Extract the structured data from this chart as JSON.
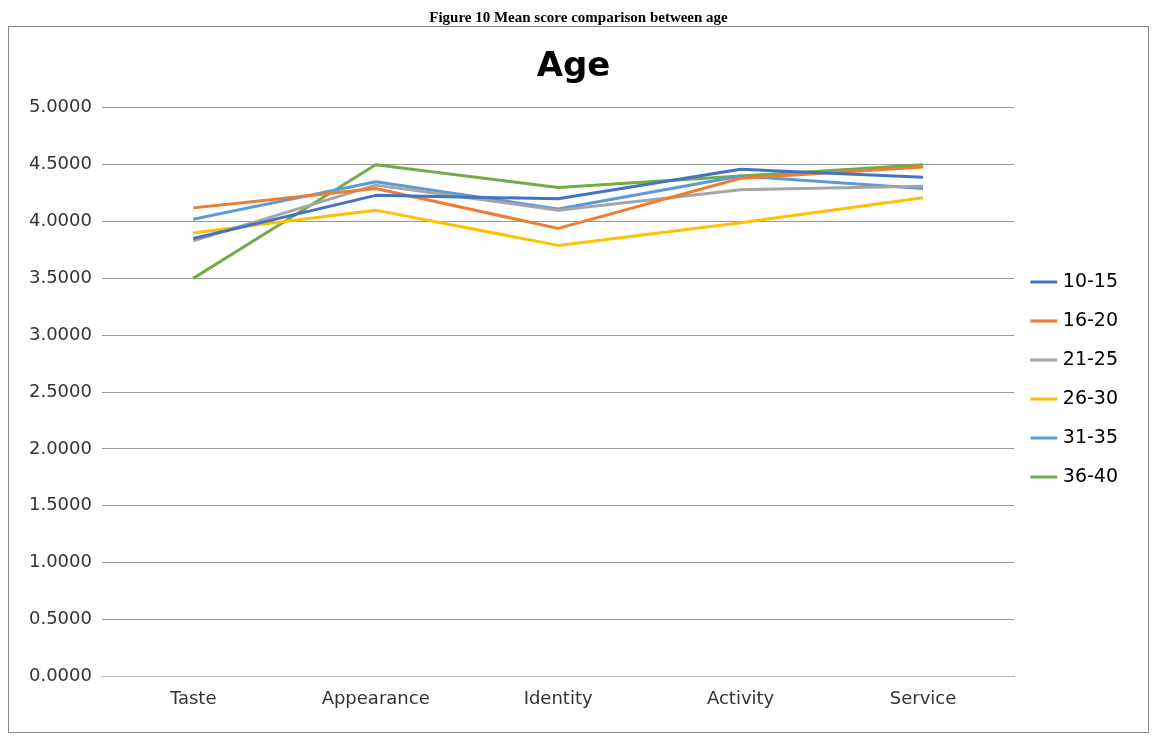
{
  "chart_data": {
    "type": "line",
    "title": "Age",
    "annotations": [
      "Figure 10 Mean score comparison between age"
    ],
    "categories": [
      "Taste",
      "Appearance",
      "Identity",
      "Activity",
      "Service"
    ],
    "series": [
      {
        "name": "10-15",
        "color": "#4472c4",
        "values": [
          3.85,
          4.23,
          4.2,
          4.46,
          4.39
        ]
      },
      {
        "name": "16-20",
        "color": "#ed7d31",
        "values": [
          4.12,
          4.29,
          3.94,
          4.38,
          4.48
        ]
      },
      {
        "name": "21-25",
        "color": "#a5a5a5",
        "values": [
          3.83,
          4.32,
          4.1,
          4.28,
          4.31
        ]
      },
      {
        "name": "26-30",
        "color": "#ffc000",
        "values": [
          3.9,
          4.1,
          3.79,
          3.99,
          4.21
        ]
      },
      {
        "name": "31-35",
        "color": "#5b9bd5",
        "values": [
          4.02,
          4.35,
          4.11,
          4.4,
          4.29
        ]
      },
      {
        "name": "36-40",
        "color": "#70ad47",
        "values": [
          3.5,
          4.5,
          4.3,
          4.4,
          4.5
        ]
      }
    ],
    "ylim": [
      0,
      5
    ],
    "yticks": [
      {
        "value": 0,
        "label": "0.0000"
      },
      {
        "value": 0.5,
        "label": "0.5000"
      },
      {
        "value": 1,
        "label": "1.0000"
      },
      {
        "value": 1.5,
        "label": "1.5000"
      },
      {
        "value": 2,
        "label": "2.0000"
      },
      {
        "value": 2.5,
        "label": "2.5000"
      },
      {
        "value": 3,
        "label": "3.0000"
      },
      {
        "value": 3.5,
        "label": "3.5000"
      },
      {
        "value": 4,
        "label": "4.0000"
      },
      {
        "value": 4.5,
        "label": "4.5000"
      },
      {
        "value": 5,
        "label": "5.0000"
      }
    ],
    "grid": "y",
    "legend": "right",
    "marker": "none",
    "line_style": "solid"
  }
}
